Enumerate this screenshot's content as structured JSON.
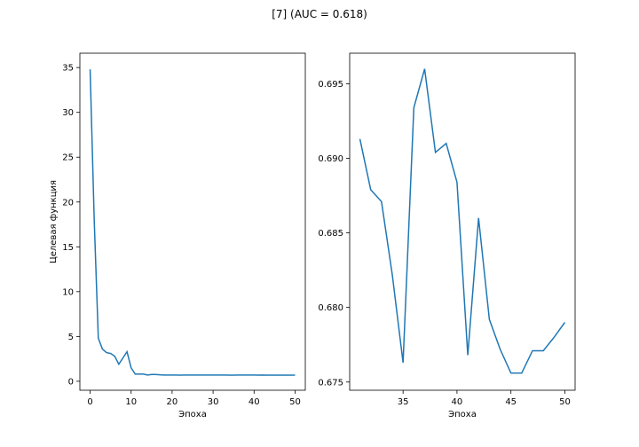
{
  "figure": {
    "suptitle": "[7] (AUC = 0.618)",
    "line_color": "#1f77b4"
  },
  "chart_data": [
    {
      "type": "line",
      "xlabel": "Эпоха",
      "ylabel": "Целевая функция",
      "xlim": [
        -2.5,
        52.5
      ],
      "ylim": [
        -1.0,
        36.6
      ],
      "xticks": [
        0,
        10,
        20,
        30,
        40,
        50
      ],
      "yticks": [
        0,
        5,
        10,
        15,
        20,
        25,
        30,
        35
      ],
      "ytick_labels": [
        "0",
        "5",
        "10",
        "15",
        "20",
        "25",
        "30",
        "35"
      ],
      "grid": false,
      "series": [
        {
          "x": [
            0,
            1,
            2,
            3,
            4,
            5,
            6,
            7,
            8,
            9,
            10,
            11,
            12,
            13,
            14,
            15,
            16,
            17,
            18,
            19,
            20,
            21,
            22,
            23,
            24,
            25,
            26,
            27,
            28,
            29,
            30,
            31,
            32,
            33,
            34,
            35,
            36,
            37,
            38,
            39,
            40,
            41,
            42,
            43,
            44,
            45,
            46,
            47,
            48,
            49,
            50
          ],
          "values": [
            34.8,
            18.0,
            4.8,
            3.6,
            3.2,
            3.1,
            2.8,
            1.9,
            2.6,
            3.3,
            1.5,
            0.8,
            0.8,
            0.8,
            0.7,
            0.75,
            0.75,
            0.72,
            0.7,
            0.7,
            0.7,
            0.7,
            0.68,
            0.7,
            0.7,
            0.7,
            0.7,
            0.7,
            0.7,
            0.7,
            0.7,
            0.7,
            0.69,
            0.69,
            0.68,
            0.68,
            0.69,
            0.69,
            0.69,
            0.69,
            0.69,
            0.68,
            0.69,
            0.68,
            0.68,
            0.68,
            0.68,
            0.68,
            0.68,
            0.68,
            0.68
          ]
        }
      ]
    },
    {
      "type": "line",
      "xlabel": "Эпоха",
      "ylabel": "",
      "xlim": [
        30.05,
        50.95
      ],
      "ylim": [
        0.67445,
        0.69705
      ],
      "xticks": [
        35,
        40,
        45,
        50
      ],
      "yticks": [
        0.675,
        0.68,
        0.685,
        0.69,
        0.695
      ],
      "ytick_labels": [
        "0.675",
        "0.680",
        "0.685",
        "0.690",
        "0.695"
      ],
      "grid": false,
      "series": [
        {
          "x": [
            31,
            32,
            33,
            34,
            35,
            36,
            37,
            38,
            39,
            40,
            41,
            42,
            43,
            44,
            45,
            46,
            47,
            48,
            49,
            50
          ],
          "values": [
            0.6913,
            0.6879,
            0.6871,
            0.6822,
            0.6763,
            0.6934,
            0.696,
            0.6904,
            0.691,
            0.6884,
            0.6768,
            0.686,
            0.6792,
            0.6772,
            0.6756,
            0.6756,
            0.6771,
            0.6771,
            0.678,
            0.679
          ]
        }
      ]
    }
  ]
}
